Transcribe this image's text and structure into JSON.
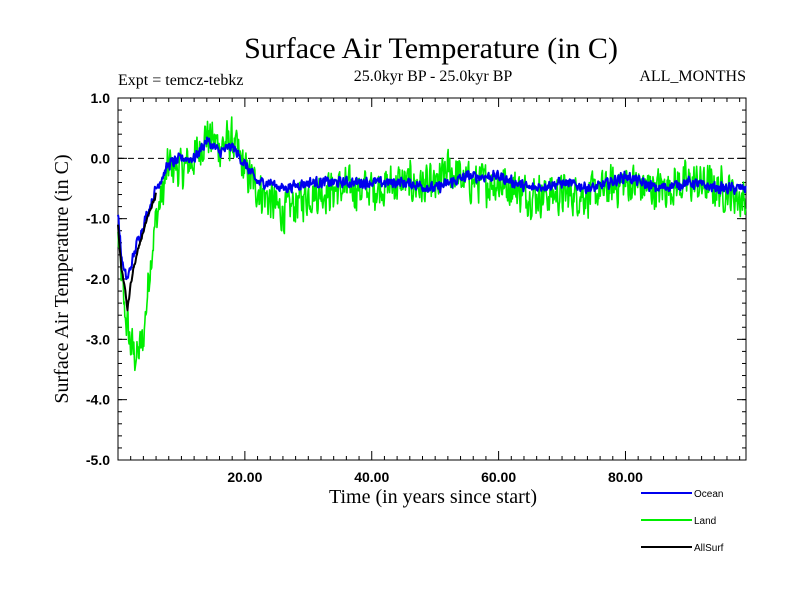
{
  "chart_data": {
    "type": "line",
    "title": "Surface Air Temperature (in C)",
    "subtitle_left": "Expt = temcz-tebkz",
    "subtitle_center": "25.0kyr BP - 25.0kyr BP",
    "subtitle_right": "ALL_MONTHS",
    "xlabel": "Time (in years since start)",
    "ylabel": "Surface Air Temperature (in C)",
    "xlim": [
      0,
      99
    ],
    "ylim": [
      -5.0,
      1.0
    ],
    "x_ticks": [
      20,
      40,
      60,
      80
    ],
    "x_tick_labels": [
      "20.00",
      "40.00",
      "60.00",
      "80.00"
    ],
    "y_ticks": [
      1.0,
      0.0,
      -1.0,
      -2.0,
      -3.0,
      -4.0,
      -5.0
    ],
    "y_tick_labels": [
      "1.0",
      "0.0",
      "-1.0",
      "-2.0",
      "-3.0",
      "-4.0",
      "-5.0"
    ],
    "reference_line": 0.0,
    "series": [
      {
        "name": "Land",
        "color": "#00ee00",
        "x": [
          0,
          1,
          2,
          3,
          4,
          5,
          6,
          7,
          8,
          10,
          12,
          14,
          16,
          18,
          20,
          22,
          24,
          26,
          30,
          35,
          40,
          45,
          50,
          52,
          55,
          60,
          65,
          70,
          75,
          80,
          85,
          90,
          95,
          99
        ],
        "values": [
          -1.3,
          -2.5,
          -3.1,
          -3.3,
          -3.0,
          -1.8,
          -1.0,
          -0.6,
          -0.1,
          -0.2,
          0.0,
          0.4,
          0.2,
          0.3,
          -0.2,
          -0.5,
          -0.7,
          -0.9,
          -0.6,
          -0.5,
          -0.5,
          -0.4,
          -0.5,
          -0.2,
          -0.4,
          -0.4,
          -0.6,
          -0.6,
          -0.6,
          -0.4,
          -0.5,
          -0.4,
          -0.5,
          -0.7
        ]
      },
      {
        "name": "Ocean",
        "color": "#0000ee",
        "x": [
          0,
          0.5,
          1,
          1.5,
          2,
          3,
          4,
          5,
          6,
          7,
          8,
          10,
          12,
          14,
          16,
          18,
          20,
          22,
          24,
          26,
          30,
          35,
          40,
          45,
          50,
          55,
          60,
          65,
          70,
          75,
          80,
          85,
          90,
          95,
          99
        ],
        "values": [
          -0.9,
          -1.6,
          -1.9,
          -2.0,
          -1.8,
          -1.4,
          -1.1,
          -0.8,
          -0.5,
          -0.3,
          -0.1,
          0.0,
          0.0,
          0.3,
          0.1,
          0.2,
          -0.1,
          -0.4,
          -0.4,
          -0.5,
          -0.4,
          -0.4,
          -0.4,
          -0.4,
          -0.5,
          -0.3,
          -0.3,
          -0.5,
          -0.4,
          -0.5,
          -0.3,
          -0.5,
          -0.4,
          -0.5,
          -0.5
        ]
      },
      {
        "name": "AllSurf",
        "color": "#000000",
        "x": [
          0,
          0.5,
          1,
          1.5,
          2,
          2.5,
          3,
          4,
          5,
          6
        ],
        "values": [
          -1.1,
          -1.8,
          -2.1,
          -2.5,
          -2.1,
          -1.8,
          -1.6,
          -1.2,
          -0.9,
          -0.6
        ]
      }
    ],
    "legend": [
      "Ocean",
      "Land",
      "AllSurf"
    ]
  }
}
